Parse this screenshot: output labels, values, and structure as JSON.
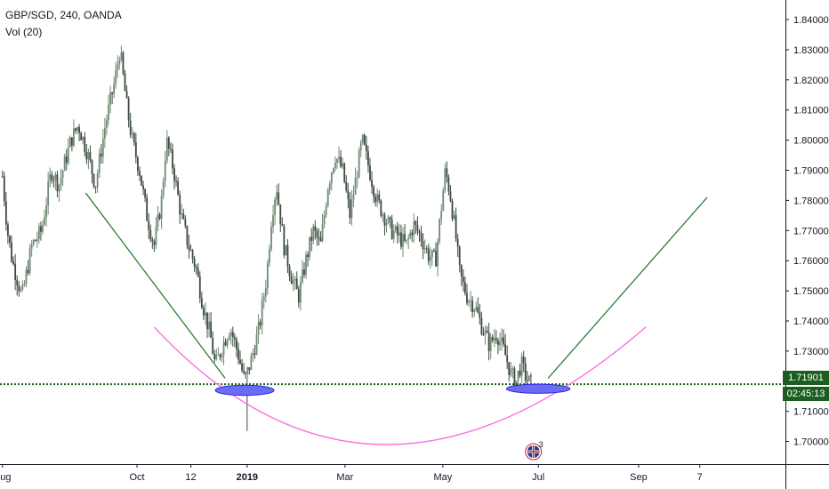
{
  "legend": {
    "symbol_line": "GBP/SGD, 240, OANDA",
    "volume_label": "Vol (20)"
  },
  "price_tags": {
    "last_price": "1.71901",
    "countdown": "02:45:13"
  },
  "event_badge_count": "3",
  "colors": {
    "candle_up": "#6f8a74",
    "candle_down": "#3c4a3f",
    "support_line": "#1b5e20",
    "trend_line": "#2e7d32",
    "arc": "#ff66dd",
    "ellipse": "#6a6cf5",
    "price_tag_bg": "#1b5e20"
  },
  "chart_data": {
    "type": "candlestick",
    "title": "GBP/SGD, 240, OANDA",
    "indicator": "Vol (20)",
    "ylim": [
      1.6925,
      1.8465
    ],
    "y_ticks": [
      "1.70000",
      "1.71000",
      "1.72000",
      "1.73000",
      "1.74000",
      "1.75000",
      "1.76000",
      "1.77000",
      "1.78000",
      "1.79000",
      "1.80000",
      "1.81000",
      "1.82000",
      "1.83000",
      "1.84000"
    ],
    "y_tick_values": [
      1.7,
      1.71,
      1.72,
      1.73,
      1.74,
      1.75,
      1.76,
      1.77,
      1.78,
      1.79,
      1.8,
      1.81,
      1.82,
      1.83,
      1.84
    ],
    "x_ticks": [
      {
        "label": "Aug",
        "t": 0.0
      },
      {
        "label": "Oct",
        "t": 0.55
      },
      {
        "label": "12",
        "t": 0.77
      },
      {
        "label": "2019",
        "t": 1.0,
        "bold": true
      },
      {
        "label": "Mar",
        "t": 1.4
      },
      {
        "label": "May",
        "t": 1.8
      },
      {
        "label": "Jul",
        "t": 2.19
      },
      {
        "label": "Sep",
        "t": 2.6
      },
      {
        "label": "7",
        "t": 2.85
      }
    ],
    "xlim": [
      -0.01,
      3.2
    ],
    "price_path": [
      [
        0.0,
        1.788
      ],
      [
        0.02,
        1.77
      ],
      [
        0.04,
        1.76
      ],
      [
        0.08,
        1.748
      ],
      [
        0.12,
        1.765
      ],
      [
        0.16,
        1.77
      ],
      [
        0.2,
        1.79
      ],
      [
        0.23,
        1.785
      ],
      [
        0.28,
        1.8
      ],
      [
        0.31,
        1.805
      ],
      [
        0.35,
        1.795
      ],
      [
        0.38,
        1.785
      ],
      [
        0.42,
        1.805
      ],
      [
        0.46,
        1.82
      ],
      [
        0.48,
        1.83
      ],
      [
        0.51,
        1.81
      ],
      [
        0.53,
        1.8
      ],
      [
        0.56,
        1.79
      ],
      [
        0.59,
        1.775
      ],
      [
        0.62,
        1.765
      ],
      [
        0.65,
        1.78
      ],
      [
        0.67,
        1.8
      ],
      [
        0.7,
        1.79
      ],
      [
        0.73,
        1.775
      ],
      [
        0.76,
        1.765
      ],
      [
        0.79,
        1.758
      ],
      [
        0.82,
        1.745
      ],
      [
        0.85,
        1.735
      ],
      [
        0.87,
        1.725
      ],
      [
        0.9,
        1.732
      ],
      [
        0.93,
        1.738
      ],
      [
        0.96,
        1.73
      ],
      [
        0.99,
        1.72
      ],
      [
        1.02,
        1.728
      ],
      [
        1.05,
        1.738
      ],
      [
        1.08,
        1.755
      ],
      [
        1.1,
        1.775
      ],
      [
        1.12,
        1.785
      ],
      [
        1.15,
        1.765
      ],
      [
        1.18,
        1.755
      ],
      [
        1.21,
        1.748
      ],
      [
        1.24,
        1.76
      ],
      [
        1.27,
        1.77
      ],
      [
        1.3,
        1.765
      ],
      [
        1.33,
        1.785
      ],
      [
        1.36,
        1.795
      ],
      [
        1.39,
        1.79
      ],
      [
        1.42,
        1.775
      ],
      [
        1.45,
        1.79
      ],
      [
        1.47,
        1.8
      ],
      [
        1.5,
        1.79
      ],
      [
        1.53,
        1.78
      ],
      [
        1.56,
        1.775
      ],
      [
        1.59,
        1.77
      ],
      [
        1.62,
        1.768
      ],
      [
        1.65,
        1.765
      ],
      [
        1.68,
        1.772
      ],
      [
        1.71,
        1.768
      ],
      [
        1.74,
        1.762
      ],
      [
        1.77,
        1.76
      ],
      [
        1.79,
        1.775
      ],
      [
        1.81,
        1.79
      ],
      [
        1.83,
        1.782
      ],
      [
        1.85,
        1.77
      ],
      [
        1.87,
        1.755
      ],
      [
        1.9,
        1.748
      ],
      [
        1.93,
        1.745
      ],
      [
        1.96,
        1.738
      ],
      [
        1.99,
        1.732
      ],
      [
        2.02,
        1.736
      ],
      [
        2.05,
        1.73
      ],
      [
        2.08,
        1.722
      ],
      [
        2.1,
        1.72
      ],
      [
        2.12,
        1.726
      ],
      [
        2.14,
        1.721
      ],
      [
        2.16,
        1.719
      ]
    ],
    "annotations": {
      "horizontal_line": {
        "price": 1.71901,
        "style": "dotted"
      },
      "left_trend_line": {
        "from": [
          0.34,
          1.7825
        ],
        "to": [
          0.91,
          1.721
        ]
      },
      "right_trend_line": {
        "from": [
          2.23,
          1.721
        ],
        "to": [
          2.88,
          1.781
        ]
      },
      "arc": {
        "from": [
          0.62,
          1.738
        ],
        "vertex": [
          1.57,
          1.699
        ],
        "to": [
          2.63,
          1.738
        ]
      },
      "ellipses": [
        {
          "center": [
            0.99,
            1.717
          ],
          "rx": 0.12,
          "ry": 0.0017
        },
        {
          "center": [
            2.19,
            1.7175
          ],
          "rx": 0.13,
          "ry": 0.0015
        }
      ]
    }
  }
}
